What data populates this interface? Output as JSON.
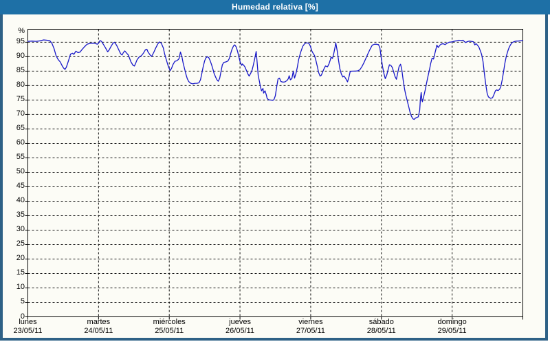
{
  "window": {
    "title": "Humedad relativa [%]"
  },
  "colors": {
    "titlebar": "#1E70A6",
    "frame_border": "#2E6186",
    "background": "#FCFCF6",
    "grid": "#111111",
    "axis": "#000000",
    "series_line": "#1616C8",
    "title_text": "#FFFFFF",
    "label_text": "#000000"
  },
  "chart_data": {
    "type": "line",
    "title": "Humedad relativa [%]",
    "ylabel": "%",
    "unit_label": "%",
    "ylim": [
      0,
      99.5
    ],
    "yticks": [
      0,
      5,
      10,
      15,
      20,
      25,
      30,
      35,
      40,
      45,
      50,
      55,
      60,
      65,
      70,
      75,
      80,
      85,
      90,
      95
    ],
    "grid": "dashed",
    "x_axis": {
      "unit": "hours from lunes 23/05/11 00:00",
      "range": [
        0,
        168
      ]
    },
    "days": [
      {
        "name": "lunes",
        "date": "23/05/11"
      },
      {
        "name": "martes",
        "date": "24/05/11"
      },
      {
        "name": "miércoles",
        "date": "25/05/11"
      },
      {
        "name": "jueves",
        "date": "26/05/11"
      },
      {
        "name": "viernes",
        "date": "27/05/11"
      },
      {
        "name": "sábado",
        "date": "28/05/11"
      },
      {
        "name": "domingo",
        "date": "29/05/11"
      }
    ],
    "series": [
      {
        "name": "Humedad relativa",
        "color": "#1616C8",
        "points": [
          [
            0,
            95.3
          ],
          [
            1.4,
            95.4
          ],
          [
            2.8,
            95.3
          ],
          [
            4.2,
            95.5
          ],
          [
            5.4,
            95.8
          ],
          [
            6.5,
            95.7
          ],
          [
            7.5,
            95.5
          ],
          [
            8.2,
            94.6
          ],
          [
            8.9,
            92.8
          ],
          [
            9.6,
            90.3
          ],
          [
            10.3,
            89
          ],
          [
            11,
            88.2
          ],
          [
            11.7,
            86.8
          ],
          [
            12.1,
            86.1
          ],
          [
            12.6,
            85.6
          ],
          [
            13.1,
            86.4
          ],
          [
            13.8,
            88.6
          ],
          [
            14.5,
            90.9
          ],
          [
            15.2,
            91.2
          ],
          [
            15.6,
            90.8
          ],
          [
            16.3,
            91.9
          ],
          [
            17,
            91.4
          ],
          [
            17.7,
            91.6
          ],
          [
            18.4,
            92.5
          ],
          [
            19.1,
            93.3
          ],
          [
            20.1,
            94.3
          ],
          [
            21,
            94.6
          ],
          [
            21.9,
            94.7
          ],
          [
            22.9,
            94.6
          ],
          [
            23.6,
            94.3
          ],
          [
            24,
            94.7
          ],
          [
            24.5,
            95.6
          ],
          [
            25,
            95.3
          ],
          [
            25.7,
            94.2
          ],
          [
            26.4,
            93
          ],
          [
            27.1,
            91.7
          ],
          [
            27.5,
            92.2
          ],
          [
            28.2,
            93.5
          ],
          [
            28.9,
            94.7
          ],
          [
            29.4,
            95
          ],
          [
            30.1,
            94
          ],
          [
            30.8,
            92.5
          ],
          [
            31.5,
            91
          ],
          [
            32,
            90.6
          ],
          [
            32.4,
            91.4
          ],
          [
            32.9,
            92
          ],
          [
            33.4,
            91.4
          ],
          [
            34.1,
            90.6
          ],
          [
            34.5,
            89.5
          ],
          [
            35,
            88.2
          ],
          [
            35.7,
            87
          ],
          [
            36.2,
            86.8
          ],
          [
            36.6,
            87.8
          ],
          [
            37.1,
            89
          ],
          [
            37.8,
            89.9
          ],
          [
            38.5,
            90.3
          ],
          [
            39.2,
            91.2
          ],
          [
            39.9,
            92.4
          ],
          [
            40.4,
            92.6
          ],
          [
            40.8,
            91.6
          ],
          [
            41.5,
            90.6
          ],
          [
            42,
            90.1
          ],
          [
            42.7,
            91.4
          ],
          [
            43.4,
            93
          ],
          [
            44.1,
            94.4
          ],
          [
            44.6,
            95.1
          ],
          [
            45.3,
            94.7
          ],
          [
            46,
            93
          ],
          [
            46.4,
            91
          ],
          [
            46.9,
            89.3
          ],
          [
            47.4,
            87.6
          ],
          [
            47.8,
            86.3
          ],
          [
            48.3,
            85.2
          ],
          [
            48.8,
            86
          ],
          [
            49.2,
            87.2
          ],
          [
            49.9,
            88.4
          ],
          [
            50.6,
            88.6
          ],
          [
            51.3,
            89.3
          ],
          [
            51.8,
            91.6
          ],
          [
            52.3,
            90
          ],
          [
            52.7,
            87.8
          ],
          [
            53.2,
            85.8
          ],
          [
            53.7,
            83.8
          ],
          [
            54.1,
            82.4
          ],
          [
            54.6,
            81.4
          ],
          [
            55.3,
            80.8
          ],
          [
            56,
            80.6
          ],
          [
            56.7,
            80.8
          ],
          [
            57.4,
            80.8
          ],
          [
            58.1,
            81
          ],
          [
            58.6,
            82
          ],
          [
            59,
            84
          ],
          [
            59.5,
            86.5
          ],
          [
            60,
            88.5
          ],
          [
            60.4,
            89.6
          ],
          [
            60.9,
            90
          ],
          [
            61.4,
            89.7
          ],
          [
            61.8,
            88.8
          ],
          [
            62.3,
            87.4
          ],
          [
            62.8,
            85.8
          ],
          [
            63.2,
            84.2
          ],
          [
            63.7,
            83
          ],
          [
            64.2,
            82
          ],
          [
            64.6,
            81.5
          ],
          [
            65.1,
            82.5
          ],
          [
            65.6,
            85
          ],
          [
            66,
            87.2
          ],
          [
            66.5,
            88
          ],
          [
            67.2,
            88.2
          ],
          [
            67.9,
            88.5
          ],
          [
            68.4,
            89.4
          ],
          [
            68.8,
            91
          ],
          [
            69.3,
            92.6
          ],
          [
            69.8,
            93.7
          ],
          [
            70.2,
            94.1
          ],
          [
            70.7,
            93.4
          ],
          [
            71.2,
            91.8
          ],
          [
            71.6,
            90
          ],
          [
            72.1,
            88
          ],
          [
            72.6,
            87
          ],
          [
            72.8,
            87.5
          ],
          [
            73.3,
            87
          ],
          [
            73.7,
            86.4
          ],
          [
            74.2,
            85.2
          ],
          [
            74.7,
            84
          ],
          [
            75.1,
            83.3
          ],
          [
            75.6,
            84.2
          ],
          [
            76.1,
            85.3
          ],
          [
            76.5,
            87
          ],
          [
            77,
            89.3
          ],
          [
            77.5,
            91.8
          ],
          [
            77.7,
            89.5
          ],
          [
            78.2,
            83.4
          ],
          [
            78.6,
            81.4
          ],
          [
            78.9,
            79.8
          ],
          [
            79.3,
            78.2
          ],
          [
            79.8,
            79
          ],
          [
            80,
            77.4
          ],
          [
            80.5,
            78.2
          ],
          [
            81,
            76.6
          ],
          [
            81.2,
            75.6
          ],
          [
            81.7,
            75.1
          ],
          [
            82.4,
            75
          ],
          [
            83.1,
            74.9
          ],
          [
            83.5,
            75.1
          ],
          [
            84,
            76.5
          ],
          [
            84.5,
            79.8
          ],
          [
            84.9,
            82.3
          ],
          [
            85.4,
            82.6
          ],
          [
            85.9,
            81.4
          ],
          [
            86.6,
            81.2
          ],
          [
            87.3,
            81.3
          ],
          [
            88,
            81.8
          ],
          [
            88.4,
            82.4
          ],
          [
            88.7,
            83.4
          ],
          [
            89.1,
            82
          ],
          [
            89.6,
            82.4
          ],
          [
            90.1,
            85
          ],
          [
            90.5,
            82.6
          ],
          [
            91,
            84.2
          ],
          [
            91.5,
            86.5
          ],
          [
            91.9,
            89
          ],
          [
            92.6,
            91.6
          ],
          [
            93.3,
            93.6
          ],
          [
            94,
            94.6
          ],
          [
            94.7,
            94.8
          ],
          [
            95.4,
            94.6
          ],
          [
            95.9,
            93.6
          ],
          [
            96.4,
            92
          ],
          [
            96.8,
            91.2
          ],
          [
            97.3,
            90.4
          ],
          [
            97.8,
            88.6
          ],
          [
            98.2,
            86.8
          ],
          [
            98.7,
            84.5
          ],
          [
            99.2,
            83.3
          ],
          [
            99.6,
            83.6
          ],
          [
            100.1,
            84.8
          ],
          [
            100.6,
            86
          ],
          [
            101,
            86.8
          ],
          [
            101.7,
            86.5
          ],
          [
            102.2,
            87.5
          ],
          [
            102.7,
            89
          ],
          [
            102.9,
            89.8
          ],
          [
            103.4,
            89.4
          ],
          [
            103.8,
            91
          ],
          [
            104.3,
            93.5
          ],
          [
            104.5,
            94.8
          ],
          [
            105,
            92
          ],
          [
            105.5,
            88.5
          ],
          [
            105.9,
            85.8
          ],
          [
            106.4,
            84
          ],
          [
            106.9,
            83
          ],
          [
            107.3,
            83.3
          ],
          [
            107.8,
            82.6
          ],
          [
            108.3,
            81.7
          ],
          [
            108.5,
            81.3
          ],
          [
            109,
            83
          ],
          [
            109.4,
            84.9
          ],
          [
            110.1,
            85
          ],
          [
            111.1,
            85
          ],
          [
            112,
            85.1
          ],
          [
            112.7,
            85.5
          ],
          [
            113.4,
            86.6
          ],
          [
            114.1,
            88
          ],
          [
            114.8,
            89.6
          ],
          [
            115.5,
            91.2
          ],
          [
            116.2,
            92.7
          ],
          [
            116.9,
            94
          ],
          [
            117.6,
            94.3
          ],
          [
            118.3,
            94.3
          ],
          [
            119,
            94.2
          ],
          [
            119.5,
            93
          ],
          [
            119.9,
            89.8
          ],
          [
            120.4,
            86.5
          ],
          [
            120.9,
            84
          ],
          [
            121.3,
            82.4
          ],
          [
            121.8,
            83.6
          ],
          [
            122.3,
            85.6
          ],
          [
            122.7,
            87.2
          ],
          [
            123.2,
            87
          ],
          [
            123.7,
            86.3
          ],
          [
            124.1,
            84.9
          ],
          [
            124.6,
            83.2
          ],
          [
            125.1,
            82.2
          ],
          [
            125.5,
            84.3
          ],
          [
            126,
            86.6
          ],
          [
            126.5,
            87.4
          ],
          [
            126.9,
            85.6
          ],
          [
            127.4,
            81.8
          ],
          [
            127.9,
            78.6
          ],
          [
            128.3,
            76.6
          ],
          [
            128.8,
            74.6
          ],
          [
            129.3,
            72.6
          ],
          [
            129.7,
            70.8
          ],
          [
            130.2,
            69.4
          ],
          [
            130.7,
            68.5
          ],
          [
            131.1,
            68.3
          ],
          [
            131.6,
            68.8
          ],
          [
            132.1,
            69
          ],
          [
            132.5,
            69.2
          ],
          [
            133,
            71.5
          ],
          [
            133.2,
            75
          ],
          [
            133.5,
            77.6
          ],
          [
            133.7,
            75.6
          ],
          [
            133.9,
            74.4
          ],
          [
            134.4,
            76.4
          ],
          [
            134.9,
            78.6
          ],
          [
            135.3,
            80.8
          ],
          [
            135.8,
            83.2
          ],
          [
            136.3,
            85.4
          ],
          [
            136.7,
            87.6
          ],
          [
            137.2,
            89.5
          ],
          [
            137.7,
            89.2
          ],
          [
            138.1,
            91
          ],
          [
            138.6,
            93
          ],
          [
            138.8,
            94
          ],
          [
            139.3,
            93.2
          ],
          [
            139.8,
            93.9
          ],
          [
            140.2,
            94.3
          ],
          [
            140.9,
            94.5
          ],
          [
            141.6,
            94.2
          ],
          [
            142.3,
            94.7
          ],
          [
            143,
            95
          ],
          [
            143.7,
            95.1
          ],
          [
            144.2,
            95.2
          ],
          [
            144.9,
            95.4
          ],
          [
            145.6,
            95.5
          ],
          [
            146.3,
            95.7
          ],
          [
            147,
            95.6
          ],
          [
            147.7,
            95.7
          ],
          [
            148.2,
            95.2
          ],
          [
            148.6,
            94.9
          ],
          [
            149.1,
            95.2
          ],
          [
            149.8,
            95.4
          ],
          [
            150.5,
            95.3
          ],
          [
            151.2,
            95.2
          ],
          [
            151.7,
            94.1
          ],
          [
            152.1,
            94.5
          ],
          [
            152.6,
            94
          ],
          [
            153.1,
            93.3
          ],
          [
            153.5,
            92.2
          ],
          [
            154,
            90.8
          ],
          [
            154.5,
            88.3
          ],
          [
            154.9,
            84.5
          ],
          [
            155.4,
            80.5
          ],
          [
            155.9,
            77.3
          ],
          [
            156.3,
            76.1
          ],
          [
            157,
            75.6
          ],
          [
            157.7,
            75.8
          ],
          [
            158.2,
            76.9
          ],
          [
            158.7,
            78.2
          ],
          [
            159.1,
            78.5
          ],
          [
            159.6,
            78.3
          ],
          [
            160.1,
            78.7
          ],
          [
            160.5,
            79.6
          ],
          [
            161,
            82
          ],
          [
            161.5,
            85
          ],
          [
            161.9,
            87.8
          ],
          [
            162.4,
            90.2
          ],
          [
            162.9,
            91.9
          ],
          [
            163.3,
            93.1
          ],
          [
            163.8,
            94.1
          ],
          [
            164.3,
            94.8
          ],
          [
            165,
            95.2
          ],
          [
            165.7,
            95.4
          ],
          [
            166.4,
            95.4
          ],
          [
            167.1,
            95.5
          ],
          [
            168,
            95.6
          ]
        ]
      }
    ]
  }
}
